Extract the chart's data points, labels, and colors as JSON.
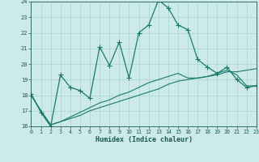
{
  "xlabel": "Humidex (Indice chaleur)",
  "background_color": "#cceae7",
  "grid_color": "#aad4d0",
  "line_color": "#1a7a6e",
  "xmin": 0,
  "xmax": 23,
  "ymin": 16,
  "ymax": 24,
  "x_ticks": [
    0,
    1,
    2,
    3,
    4,
    5,
    6,
    7,
    8,
    9,
    10,
    11,
    12,
    13,
    14,
    15,
    16,
    17,
    18,
    19,
    20,
    21,
    22,
    23
  ],
  "y_ticks": [
    16,
    17,
    18,
    19,
    20,
    21,
    22,
    23,
    24
  ],
  "series1_x": [
    0,
    1,
    2,
    3,
    4,
    5,
    6,
    7,
    8,
    9,
    10,
    11,
    12,
    13,
    14,
    15,
    16,
    17,
    18,
    19,
    20,
    21,
    22,
    23
  ],
  "series1_y": [
    18.1,
    16.9,
    16.0,
    19.3,
    18.5,
    18.3,
    17.8,
    21.1,
    19.9,
    21.4,
    19.1,
    22.0,
    22.5,
    24.1,
    23.6,
    22.5,
    22.2,
    20.3,
    19.8,
    19.4,
    19.8,
    19.0,
    18.5,
    18.6
  ],
  "series2_x": [
    0,
    1,
    2,
    3,
    4,
    5,
    6,
    7,
    8,
    9,
    10,
    11,
    12,
    13,
    14,
    15,
    16,
    17,
    18,
    19,
    20,
    21,
    22,
    23
  ],
  "series2_y": [
    18.0,
    17.0,
    16.1,
    16.3,
    16.5,
    16.7,
    17.0,
    17.2,
    17.4,
    17.6,
    17.8,
    18.0,
    18.2,
    18.4,
    18.7,
    18.9,
    19.0,
    19.1,
    19.2,
    19.3,
    19.5,
    19.5,
    19.6,
    19.7
  ],
  "series3_x": [
    0,
    1,
    2,
    3,
    4,
    5,
    6,
    7,
    8,
    9,
    10,
    11,
    12,
    13,
    14,
    15,
    16,
    17,
    18,
    19,
    20,
    21,
    22,
    23
  ],
  "series3_y": [
    18.0,
    17.0,
    16.1,
    16.3,
    16.6,
    16.9,
    17.2,
    17.5,
    17.7,
    18.0,
    18.2,
    18.5,
    18.8,
    19.0,
    19.2,
    19.4,
    19.1,
    19.1,
    19.2,
    19.4,
    19.6,
    19.3,
    18.6,
    18.6
  ]
}
